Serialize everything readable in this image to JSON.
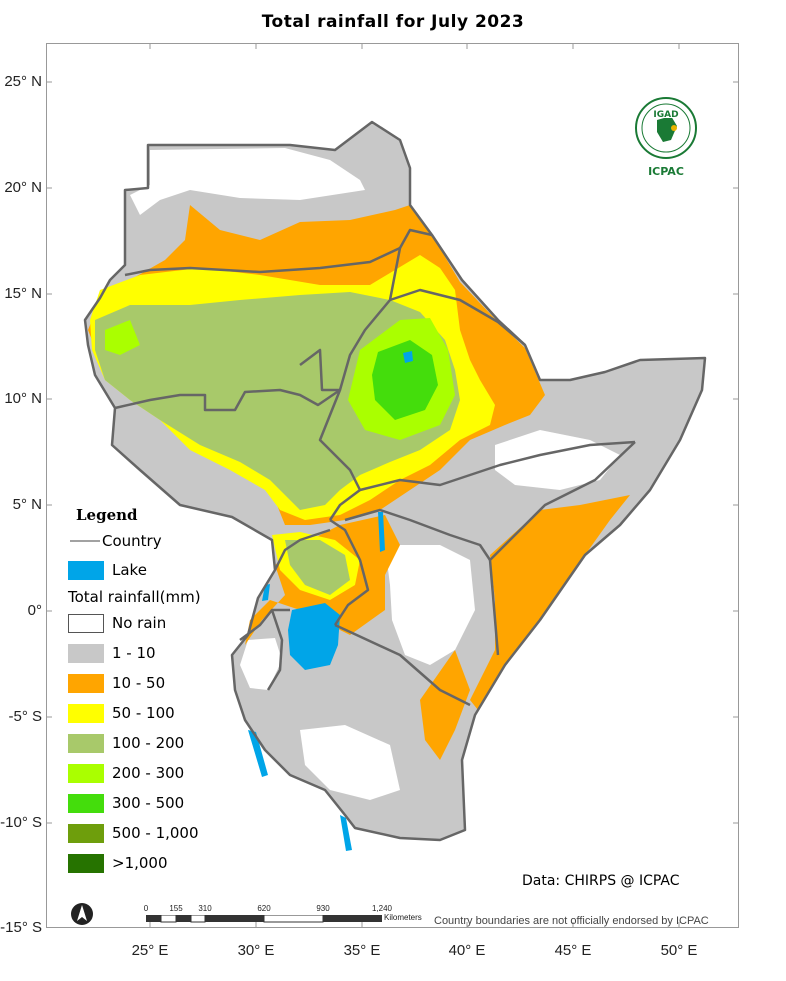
{
  "title": "Total rainfall  for  July  2023",
  "latitude_labels": [
    "25° N",
    "20° N",
    "15° N",
    "10° N",
    "5° N",
    "0°",
    "-5° S",
    "-10° S",
    "-15° S"
  ],
  "longitude_labels": [
    "25° E",
    "30° E",
    "35° E",
    "40° E",
    "45° E",
    "50° E"
  ],
  "legend": {
    "heading": "Legend",
    "country_label": "Country",
    "lake_label": "Lake",
    "rainfall_heading": "Total rainfall(mm)",
    "classes": [
      {
        "label": "No rain",
        "color": "#ffffff"
      },
      {
        "label": "1 - 10",
        "color": "#c8c8c8"
      },
      {
        "label": "10 - 50",
        "color": "#ffa500"
      },
      {
        "label": "50 - 100",
        "color": "#ffff00"
      },
      {
        "label": "100 - 200",
        "color": "#a8c96a"
      },
      {
        "label": "200 - 300",
        "color": "#aaff00"
      },
      {
        "label": "300 - 500",
        "color": "#44dd0c"
      },
      {
        "label": "500 - 1,000",
        "color": "#6e9e0c"
      },
      {
        "label": ">1,000",
        "color": "#267300"
      }
    ],
    "lake_color": "#00a5e8"
  },
  "scale_bar": {
    "ticks": [
      "0",
      "155",
      "310",
      "620",
      "930",
      "1,240"
    ],
    "unit": "Kilometers"
  },
  "credit": "Data: CHIRPS @ ICPAC",
  "disclaimer": "Country boundaries are not officially endorsed by ICPAC",
  "logo": {
    "top_text": "IGAD",
    "bottom_text": "ICPAC"
  }
}
